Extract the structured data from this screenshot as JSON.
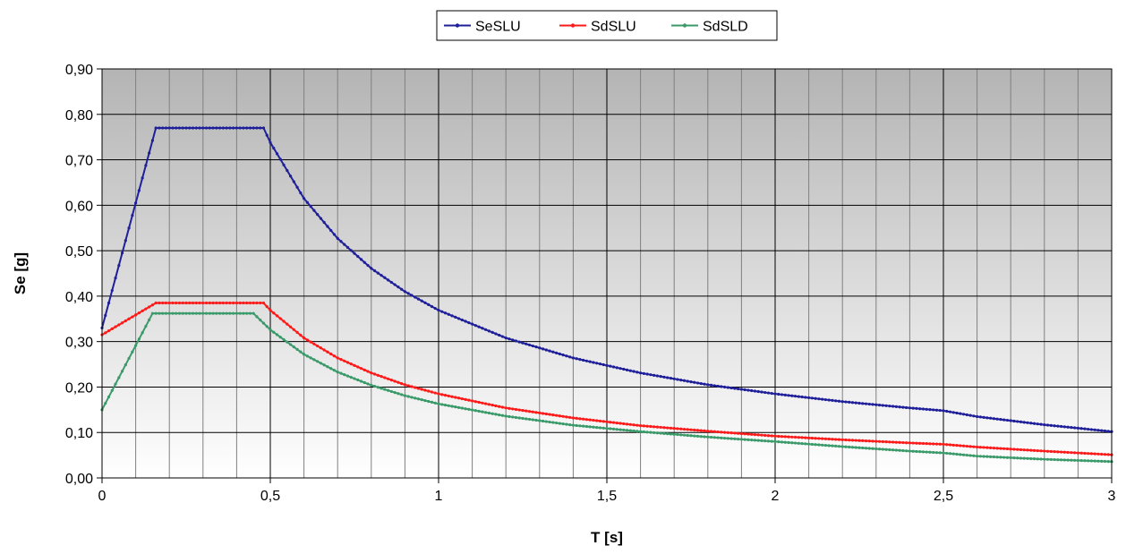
{
  "chart_data": {
    "type": "line",
    "xlabel": "T [s]",
    "ylabel": "Se [g]",
    "xlim": [
      0,
      3
    ],
    "ylim": [
      0,
      0.9
    ],
    "grid": true,
    "legend_position": "top-center",
    "x_ticks": [
      {
        "value": 0,
        "label": "0"
      },
      {
        "value": 0.5,
        "label": "0,5"
      },
      {
        "value": 1,
        "label": "1"
      },
      {
        "value": 1.5,
        "label": "1,5"
      },
      {
        "value": 2,
        "label": "2"
      },
      {
        "value": 2.5,
        "label": "2,5"
      },
      {
        "value": 3,
        "label": "3"
      }
    ],
    "y_ticks": [
      {
        "value": 0,
        "label": "0,00"
      },
      {
        "value": 0.1,
        "label": "0,10"
      },
      {
        "value": 0.2,
        "label": "0,20"
      },
      {
        "value": 0.3,
        "label": "0,30"
      },
      {
        "value": 0.4,
        "label": "0,40"
      },
      {
        "value": 0.5,
        "label": "0,50"
      },
      {
        "value": 0.6,
        "label": "0,60"
      },
      {
        "value": 0.7,
        "label": "0,70"
      },
      {
        "value": 0.8,
        "label": "0,80"
      },
      {
        "value": 0.9,
        "label": "0,90"
      }
    ],
    "series": [
      {
        "name": "SeSLU",
        "color": "#1f1f9a",
        "x": [
          0,
          0.16,
          0.48,
          0.5,
          0.6,
          0.7,
          0.8,
          0.9,
          1.0,
          1.2,
          1.4,
          1.6,
          1.8,
          2.0,
          2.2,
          2.4,
          2.5,
          2.6,
          2.8,
          3.0
        ],
        "y": [
          0.33,
          0.77,
          0.77,
          0.738,
          0.615,
          0.527,
          0.461,
          0.41,
          0.369,
          0.308,
          0.264,
          0.231,
          0.205,
          0.185,
          0.168,
          0.154,
          0.148,
          0.135,
          0.117,
          0.102
        ]
      },
      {
        "name": "SdSLU",
        "color": "#ff1a1a",
        "x": [
          0,
          0.16,
          0.48,
          0.5,
          0.6,
          0.7,
          0.8,
          0.9,
          1.0,
          1.2,
          1.4,
          1.6,
          1.8,
          2.0,
          2.2,
          2.4,
          2.5,
          2.6,
          2.8,
          3.0
        ],
        "y": [
          0.315,
          0.385,
          0.385,
          0.369,
          0.308,
          0.264,
          0.231,
          0.205,
          0.185,
          0.154,
          0.132,
          0.115,
          0.103,
          0.092,
          0.084,
          0.077,
          0.074,
          0.068,
          0.059,
          0.051
        ]
      },
      {
        "name": "SdSLD",
        "color": "#3a9a6a",
        "x": [
          0,
          0.15,
          0.45,
          0.5,
          0.6,
          0.7,
          0.8,
          0.9,
          1.0,
          1.2,
          1.4,
          1.6,
          1.8,
          2.0,
          2.2,
          2.4,
          2.5,
          2.6,
          2.8,
          3.0
        ],
        "y": [
          0.15,
          0.362,
          0.362,
          0.326,
          0.272,
          0.233,
          0.204,
          0.181,
          0.163,
          0.136,
          0.116,
          0.102,
          0.09,
          0.08,
          0.069,
          0.059,
          0.055,
          0.048,
          0.041,
          0.036
        ]
      }
    ]
  }
}
